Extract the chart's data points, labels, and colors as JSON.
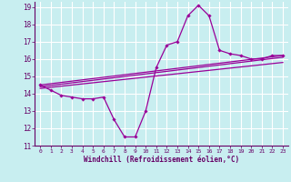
{
  "xlabel": "Windchill (Refroidissement éolien,°C)",
  "bg_color": "#c8eef0",
  "grid_color": "#ffffff",
  "line_color": "#990099",
  "xlim": [
    -0.5,
    23.5
  ],
  "ylim": [
    11,
    19.3
  ],
  "xticks": [
    0,
    1,
    2,
    3,
    4,
    5,
    6,
    7,
    8,
    9,
    10,
    11,
    12,
    13,
    14,
    15,
    16,
    17,
    18,
    19,
    20,
    21,
    22,
    23
  ],
  "yticks": [
    11,
    12,
    13,
    14,
    15,
    16,
    17,
    18,
    19
  ],
  "series1_x": [
    0,
    1,
    2,
    3,
    4,
    5,
    6,
    7,
    8,
    9,
    10,
    11,
    12,
    13,
    14,
    15,
    16,
    17,
    18,
    19,
    20,
    21,
    22,
    23
  ],
  "series1_y": [
    14.5,
    14.2,
    13.9,
    13.8,
    13.7,
    13.7,
    13.8,
    12.5,
    11.5,
    11.5,
    13.0,
    15.5,
    16.8,
    17.0,
    18.5,
    19.1,
    18.5,
    16.5,
    16.3,
    16.2,
    16.0,
    16.0,
    16.2,
    16.2
  ],
  "series2_x": [
    0,
    23
  ],
  "series2_y": [
    14.5,
    16.2
  ],
  "series3_x": [
    0,
    23
  ],
  "series3_y": [
    14.4,
    16.1
  ],
  "series4_x": [
    0,
    23
  ],
  "series4_y": [
    14.3,
    15.8
  ]
}
